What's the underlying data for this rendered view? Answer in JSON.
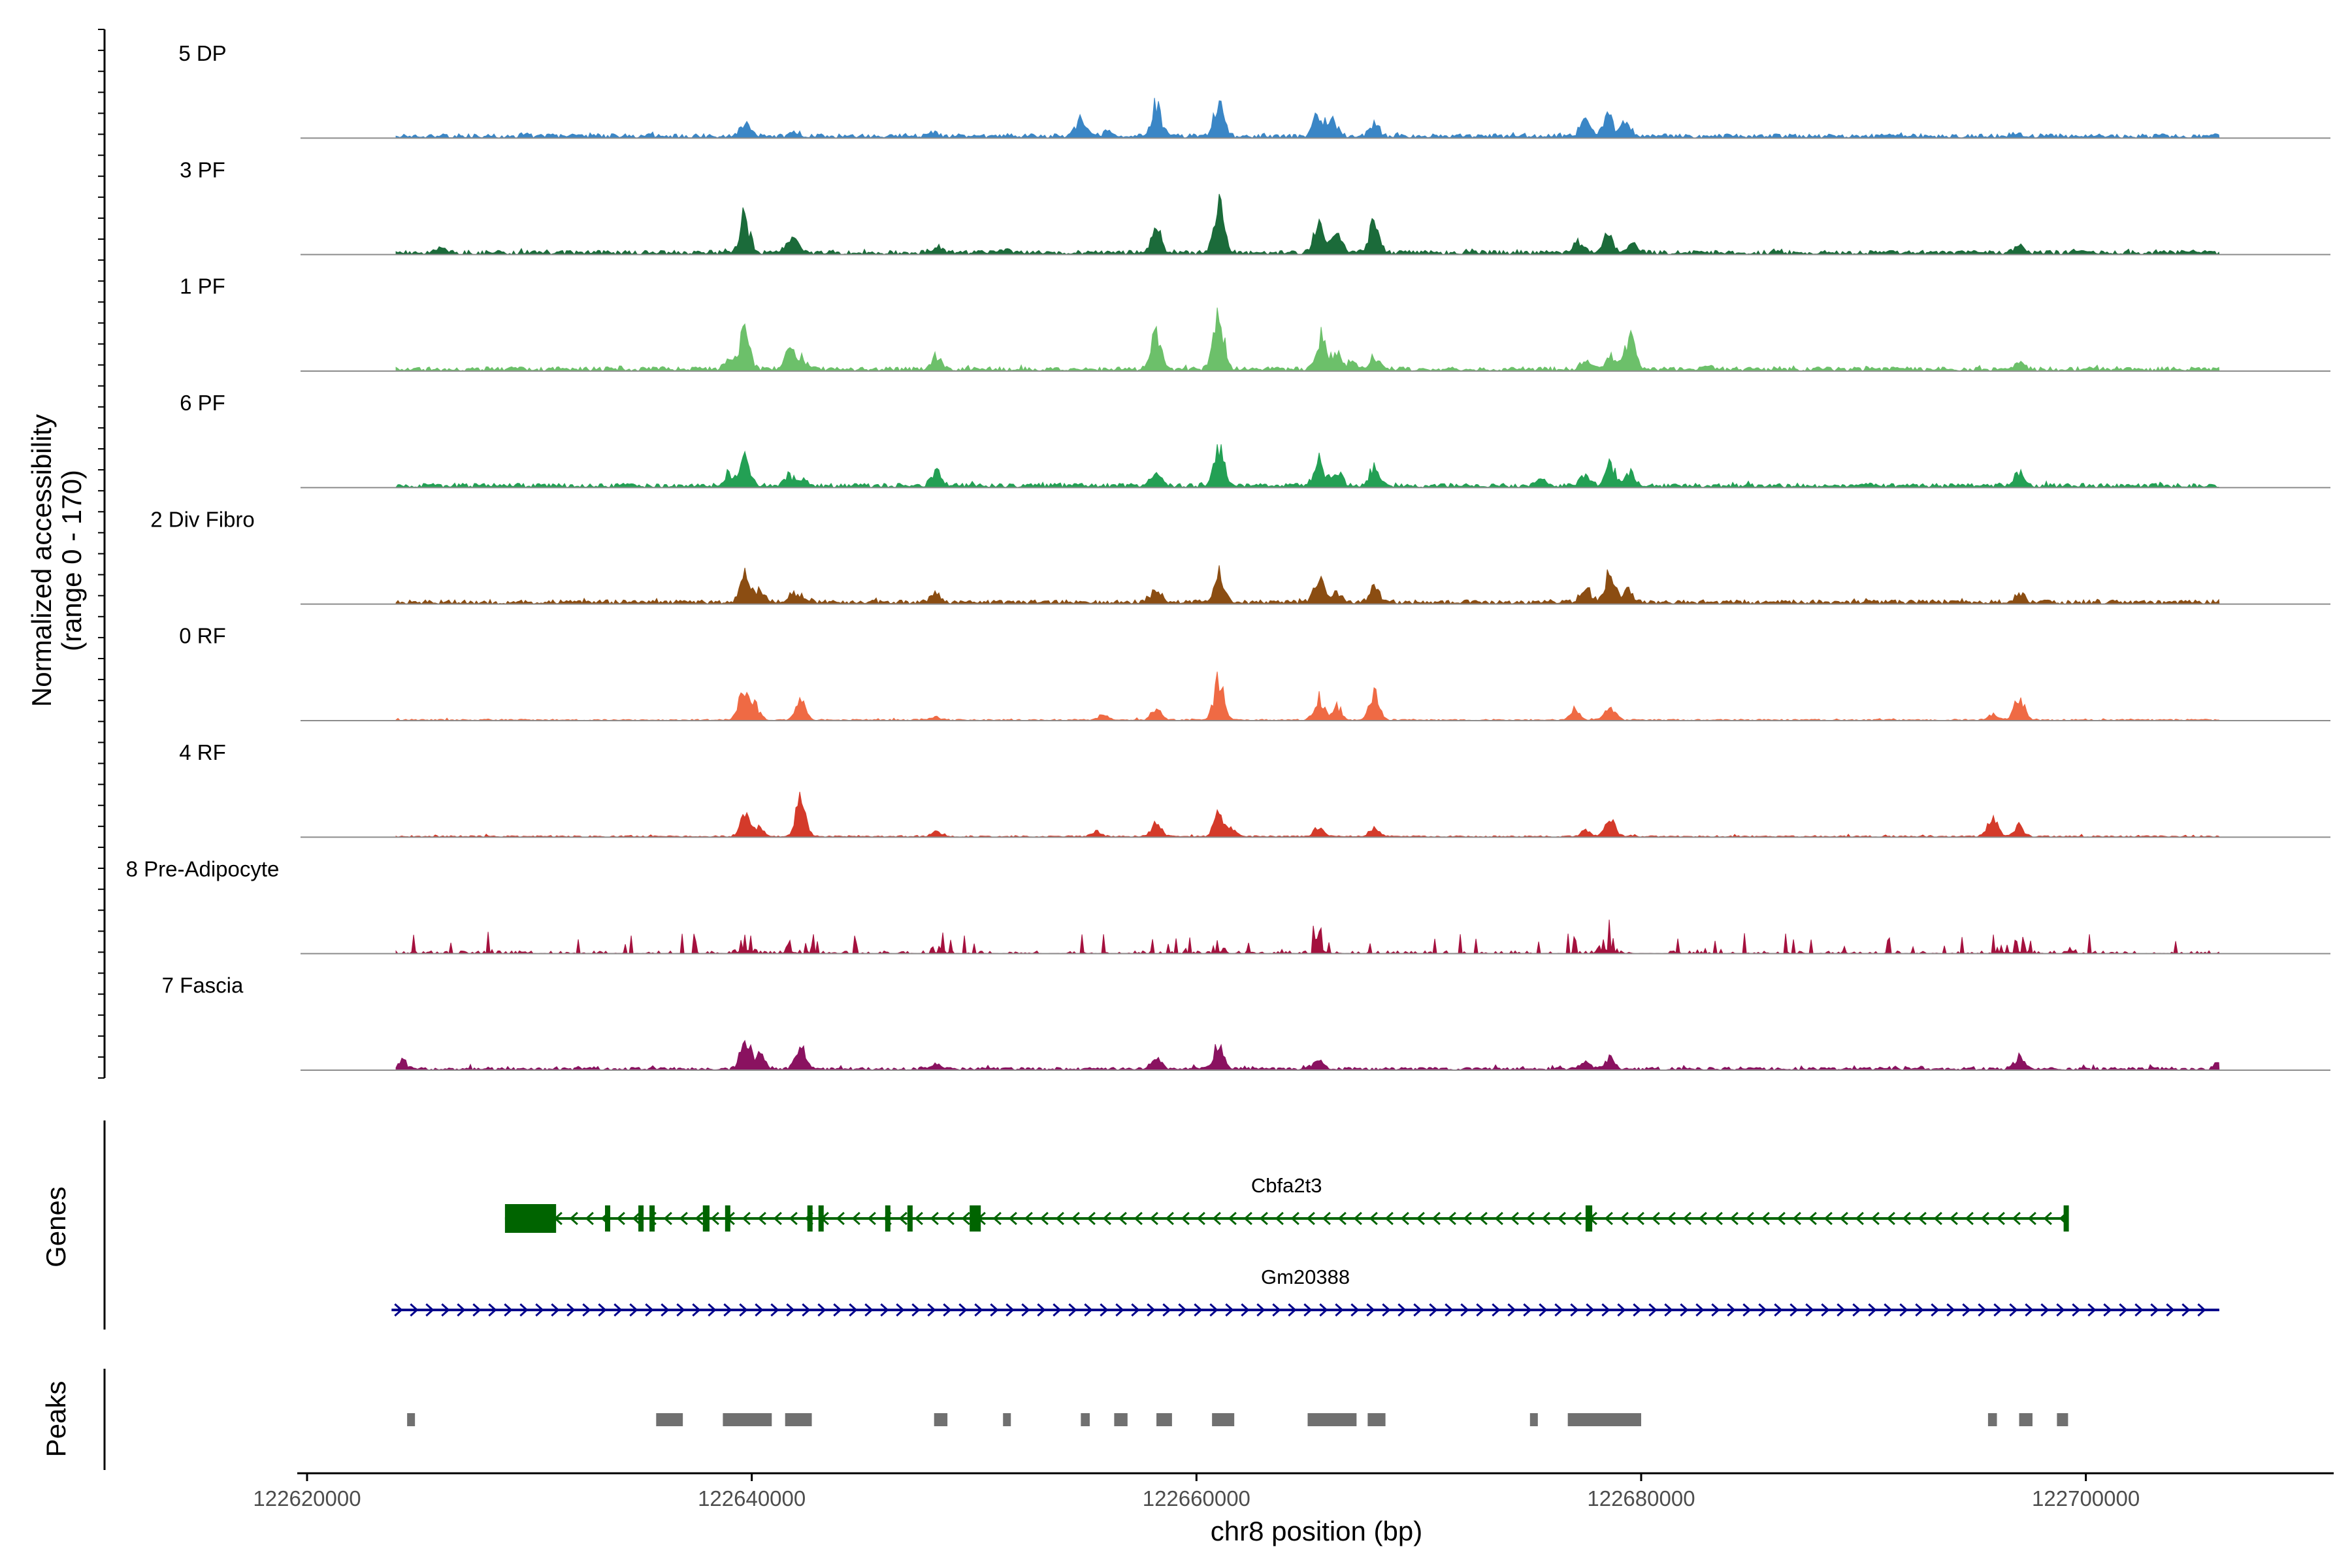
{
  "chart_data": {
    "type": "area",
    "title": "",
    "chromosome": "chr8",
    "xlabel": "chr8 position (bp)",
    "xlim": [
      122620000,
      122711000
    ],
    "xticks": [
      122620000,
      122640000,
      122660000,
      122680000,
      122700000
    ],
    "xtick_labels": [
      "122620000",
      "122640000",
      "122660000",
      "122680000",
      "122700000"
    ],
    "coverage": {
      "ylabel_line1": "Normalized accessibility",
      "ylabel_line2": "(range 0 - 170)",
      "ylim": [
        0,
        170
      ],
      "signal_start": 122624000,
      "signal_end": 122706000,
      "tracks": [
        {
          "name": "5 DP",
          "color": "#3a86c6",
          "background": 3,
          "noise": 1.5,
          "peaks": [
            [
              122639700,
              20
            ],
            [
              122642000,
              6
            ],
            [
              122648200,
              7
            ],
            [
              122654800,
              30
            ],
            [
              122656000,
              9
            ],
            [
              122658200,
              60
            ],
            [
              122661000,
              65
            ],
            [
              122665500,
              45
            ],
            [
              122666100,
              30
            ],
            [
              122668000,
              22
            ],
            [
              122677500,
              30
            ],
            [
              122678500,
              35
            ],
            [
              122679300,
              25
            ],
            [
              122697000,
              5
            ]
          ]
        },
        {
          "name": "3 PF",
          "color": "#1b6b3a",
          "background": 3,
          "noise": 1.5,
          "peaks": [
            [
              122626000,
              10
            ],
            [
              122639700,
              65
            ],
            [
              122641700,
              18
            ],
            [
              122642000,
              12
            ],
            [
              122648300,
              14
            ],
            [
              122651500,
              6
            ],
            [
              122658200,
              45
            ],
            [
              122661000,
              100
            ],
            [
              122665500,
              55
            ],
            [
              122666300,
              35
            ],
            [
              122668000,
              55
            ],
            [
              122677200,
              20
            ],
            [
              122678500,
              35
            ],
            [
              122679600,
              18
            ],
            [
              122697000,
              15
            ]
          ]
        },
        {
          "name": "1 PF",
          "color": "#6cc06a",
          "background": 3,
          "noise": 1.5,
          "peaks": [
            [
              122639700,
              70
            ],
            [
              122639000,
              20
            ],
            [
              122641700,
              30
            ],
            [
              122642200,
              24
            ],
            [
              122648300,
              25
            ],
            [
              122658200,
              65
            ],
            [
              122661000,
              110
            ],
            [
              122665600,
              55
            ],
            [
              122666300,
              30
            ],
            [
              122667000,
              12
            ],
            [
              122668000,
              25
            ],
            [
              122677500,
              15
            ],
            [
              122678600,
              25
            ],
            [
              122679500,
              55
            ],
            [
              122683000,
              6
            ],
            [
              122697000,
              16
            ]
          ]
        },
        {
          "name": "6 PF",
          "color": "#23a054",
          "background": 3,
          "noise": 1.5,
          "peaks": [
            [
              122639700,
              50
            ],
            [
              122639000,
              22
            ],
            [
              122641700,
              20
            ],
            [
              122642300,
              12
            ],
            [
              122648300,
              28
            ],
            [
              122658200,
              30
            ],
            [
              122661000,
              70
            ],
            [
              122665500,
              50
            ],
            [
              122666300,
              25
            ],
            [
              122668000,
              35
            ],
            [
              122675500,
              12
            ],
            [
              122677500,
              22
            ],
            [
              122678600,
              45
            ],
            [
              122679500,
              25
            ],
            [
              122697000,
              30
            ]
          ]
        },
        {
          "name": "2 Div Fibro",
          "color": "#8b4d12",
          "background": 3,
          "noise": 1.5,
          "peaks": [
            [
              122639700,
              50
            ],
            [
              122640300,
              20
            ],
            [
              122641800,
              15
            ],
            [
              122642300,
              8
            ],
            [
              122648300,
              18
            ],
            [
              122658200,
              22
            ],
            [
              122661000,
              60
            ],
            [
              122665500,
              45
            ],
            [
              122666300,
              20
            ],
            [
              122668000,
              30
            ],
            [
              122677500,
              28
            ],
            [
              122678600,
              50
            ],
            [
              122679400,
              20
            ],
            [
              122697000,
              18
            ]
          ]
        },
        {
          "name": "0 RF",
          "color": "#ef6a44",
          "background": 1,
          "noise": 1,
          "peaks": [
            [
              122639600,
              45
            ],
            [
              122640100,
              30
            ],
            [
              122642200,
              35
            ],
            [
              122648300,
              6
            ],
            [
              122655800,
              10
            ],
            [
              122658200,
              22
            ],
            [
              122661000,
              70
            ],
            [
              122665500,
              40
            ],
            [
              122666300,
              25
            ],
            [
              122668000,
              45
            ],
            [
              122677000,
              20
            ],
            [
              122678600,
              30
            ],
            [
              122695800,
              10
            ],
            [
              122697000,
              45
            ]
          ]
        },
        {
          "name": "4 RF",
          "color": "#d43a2a",
          "background": 1,
          "noise": 1,
          "peaks": [
            [
              122639700,
              35
            ],
            [
              122640300,
              15
            ],
            [
              122642200,
              70
            ],
            [
              122648300,
              8
            ],
            [
              122655500,
              10
            ],
            [
              122658200,
              25
            ],
            [
              122661000,
              40
            ],
            [
              122661600,
              15
            ],
            [
              122665500,
              18
            ],
            [
              122668000,
              15
            ],
            [
              122677500,
              12
            ],
            [
              122678600,
              38
            ],
            [
              122695800,
              35
            ],
            [
              122697000,
              20
            ]
          ]
        },
        {
          "name": "8 Pre-Adipocyte",
          "color": "#a4113e",
          "background": 2,
          "noise": 12,
          "peaks": [
            [
              122639700,
              45
            ],
            [
              122641700,
              20
            ],
            [
              122648300,
              10
            ],
            [
              122661000,
              20
            ],
            [
              122665600,
              35
            ],
            [
              122678500,
              55
            ],
            [
              122697000,
              25
            ],
            [
              122696200,
              15
            ]
          ]
        },
        {
          "name": "7 Fascia",
          "color": "#8a1260",
          "background": 2,
          "noise": 2,
          "peaks": [
            [
              122624300,
              15
            ],
            [
              122639700,
              55
            ],
            [
              122640400,
              25
            ],
            [
              122642200,
              45
            ],
            [
              122648300,
              8
            ],
            [
              122658200,
              20
            ],
            [
              122661000,
              45
            ],
            [
              122665500,
              15
            ],
            [
              122677500,
              15
            ],
            [
              122678600,
              20
            ],
            [
              122697000,
              22
            ],
            [
              122706000,
              10
            ]
          ]
        }
      ]
    },
    "genes_panel": {
      "ylabel": "Genes",
      "genes": [
        {
          "name": "Cbfa2t3",
          "strand": "-",
          "color": "#006400",
          "start": 122628900,
          "end": 122699200,
          "exons": [
            [
              122628900,
              122631200
            ],
            [
              122633400,
              122633600
            ],
            [
              122634900,
              122635100
            ],
            [
              122635400,
              122635600
            ],
            [
              122637800,
              122638100
            ],
            [
              122638800,
              122639000
            ],
            [
              122642500,
              122642650
            ],
            [
              122643000,
              122643150
            ],
            [
              122646000,
              122646050
            ],
            [
              122647000,
              122647150
            ],
            [
              122649800,
              122650300
            ],
            [
              122677500,
              122677800
            ],
            [
              122699000,
              122699200
            ]
          ]
        },
        {
          "name": "Gm20388",
          "strand": "+",
          "color": "#00008b",
          "start": 122623800,
          "end": 122706000,
          "exons": []
        }
      ]
    },
    "peaks_panel": {
      "ylabel": "Peaks",
      "color": "#707070",
      "regions": [
        [
          122624500,
          122624800
        ],
        [
          122635700,
          122636900
        ],
        [
          122638700,
          122640900
        ],
        [
          122641500,
          122642700
        ],
        [
          122648200,
          122648800
        ],
        [
          122651300,
          122651600
        ],
        [
          122654800,
          122655200
        ],
        [
          122656300,
          122656900
        ],
        [
          122658200,
          122658900
        ],
        [
          122660700,
          122661700
        ],
        [
          122665000,
          122667200
        ],
        [
          122667700,
          122668500
        ],
        [
          122675000,
          122675300
        ],
        [
          122676700,
          122680000
        ],
        [
          122695600,
          122696000
        ],
        [
          122697000,
          122697600
        ],
        [
          122698700,
          122699200
        ]
      ]
    }
  }
}
